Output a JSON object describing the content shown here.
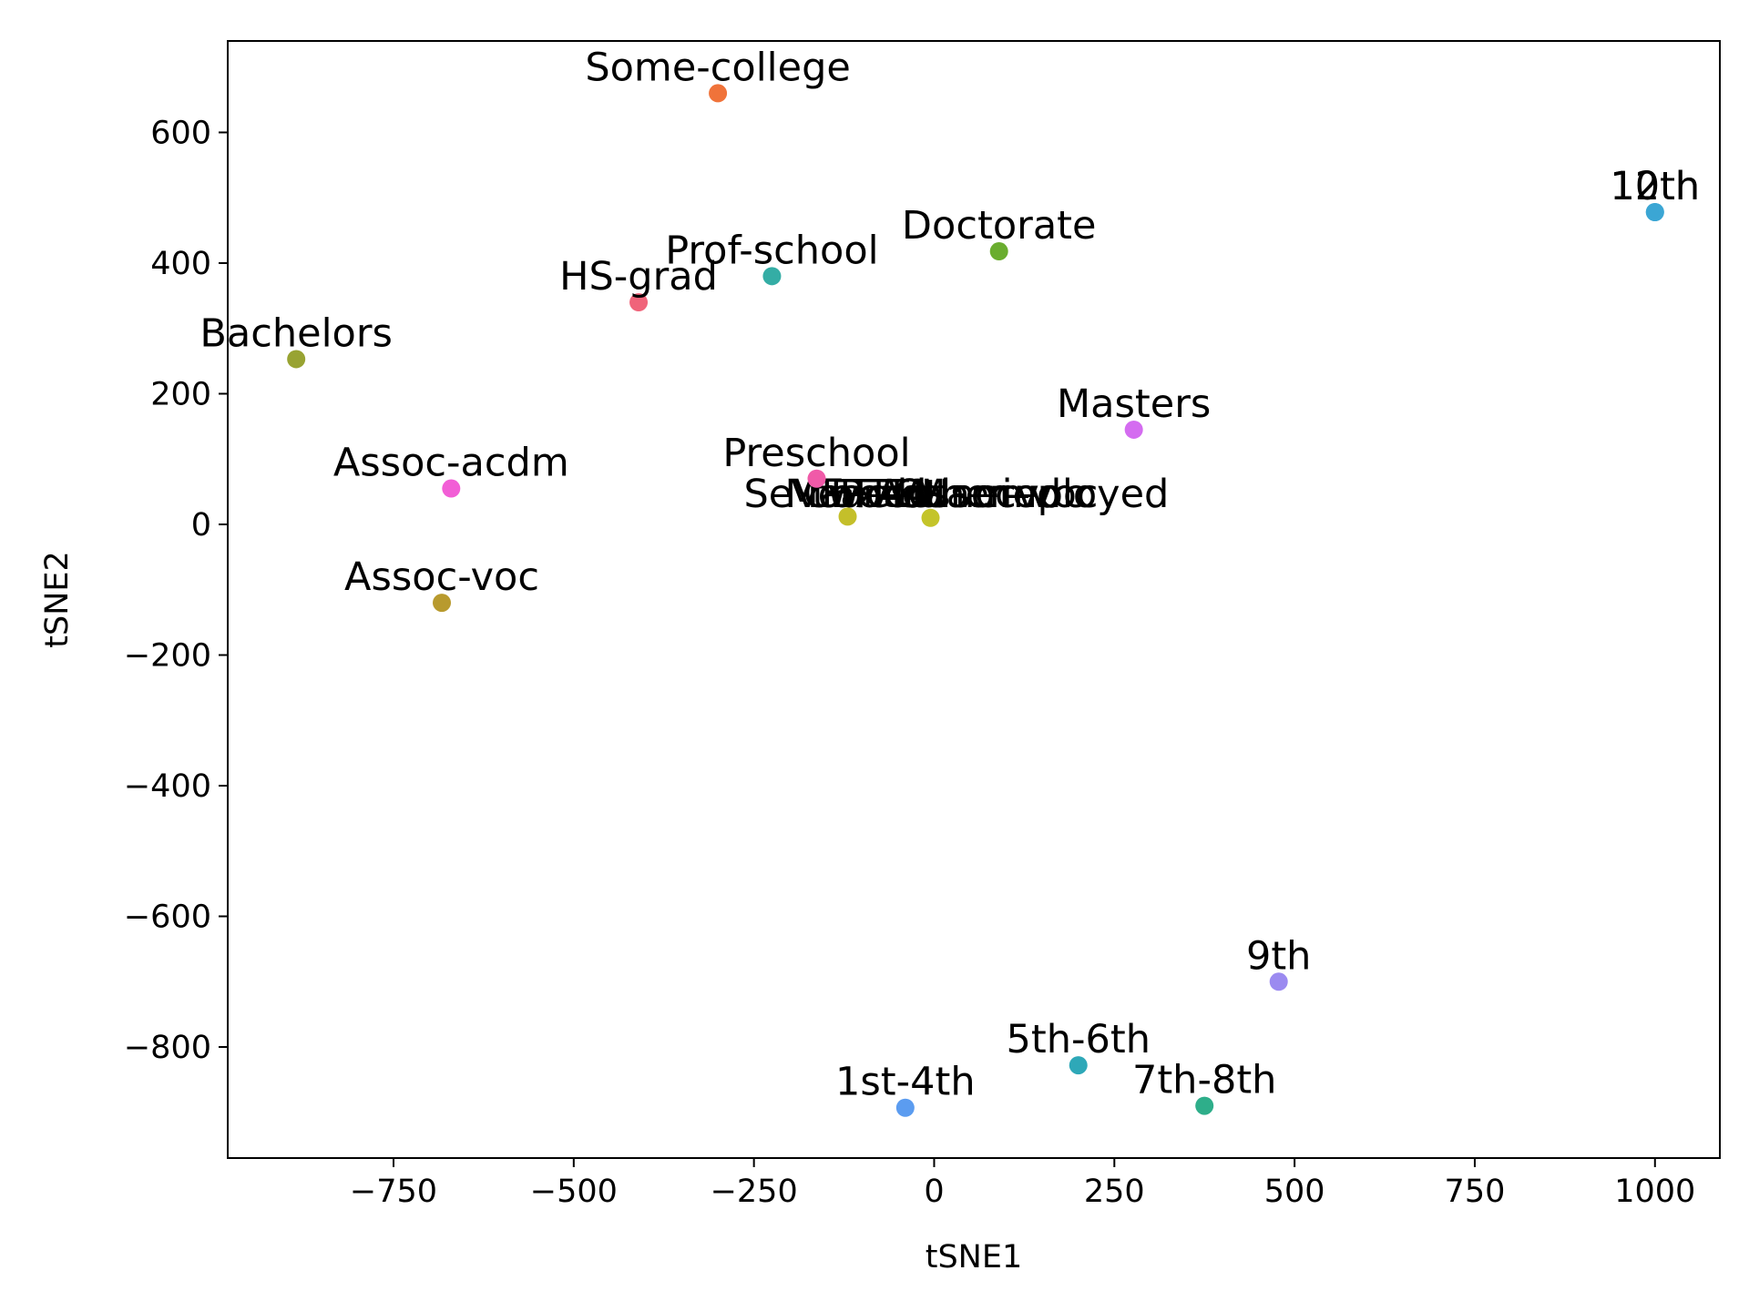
{
  "chart_data": {
    "type": "scatter",
    "title": "",
    "xlabel": "tSNE1",
    "ylabel": "tSNE2",
    "xlim": [
      -980,
      1090
    ],
    "ylim": [
      -970,
      740
    ],
    "xticks": [
      {
        "value": -750,
        "label": "−750"
      },
      {
        "value": -500,
        "label": "−500"
      },
      {
        "value": -250,
        "label": "−250"
      },
      {
        "value": 0,
        "label": "0"
      },
      {
        "value": 250,
        "label": "250"
      },
      {
        "value": 500,
        "label": "500"
      },
      {
        "value": 750,
        "label": "750"
      },
      {
        "value": 1000,
        "label": "1000"
      }
    ],
    "yticks": [
      {
        "value": -800,
        "label": "−800"
      },
      {
        "value": -600,
        "label": "−600"
      },
      {
        "value": -400,
        "label": "−400"
      },
      {
        "value": -200,
        "label": "−200"
      },
      {
        "value": 0,
        "label": "0"
      },
      {
        "value": 200,
        "label": "200"
      },
      {
        "value": 400,
        "label": "400"
      },
      {
        "value": 600,
        "label": "600"
      }
    ],
    "grid": false,
    "points": [
      {
        "label": "Some-college",
        "x": -300,
        "y": 660,
        "color": "#f0733a"
      },
      {
        "label": "Doctorate",
        "x": 90,
        "y": 418,
        "color": "#6aad2f"
      },
      {
        "label": "Prof-school",
        "x": -225,
        "y": 380,
        "color": "#34ada5"
      },
      {
        "label": "HS-grad",
        "x": -410,
        "y": 340,
        "color": "#f0647a"
      },
      {
        "label": "Bachelors",
        "x": -885,
        "y": 253,
        "color": "#98a332"
      },
      {
        "label": "Masters",
        "x": 277,
        "y": 145,
        "color": "#d46cf0"
      },
      {
        "label": "Preschool",
        "x": -163,
        "y": 70,
        "color": "#f05aa8"
      },
      {
        "label": "Assoc-acdm",
        "x": -670,
        "y": 55,
        "color": "#f25ed6"
      },
      {
        "label": "Some-college-2",
        "x": -120,
        "y": 12,
        "color": "#c4bf2a"
      },
      {
        "label": "Assoc-voc",
        "x": -683,
        "y": -120,
        "color": "#b89a2e"
      },
      {
        "label": "9th",
        "x": 478,
        "y": -700,
        "color": "#9b8af0"
      },
      {
        "label": "5th-6th",
        "x": 200,
        "y": -828,
        "color": "#2ea8b8"
      },
      {
        "label": "1st-4th",
        "x": -40,
        "y": -893,
        "color": "#5b9cf0"
      },
      {
        "label": "7th-8th",
        "x": 375,
        "y": -890,
        "color": "#2eae8a"
      },
      {
        "label": "10th",
        "x": 1000,
        "y": 478,
        "color": "#3ba6d4"
      },
      {
        "label": "12th",
        "x": 1000,
        "y": 478,
        "color": "#3ba6d4"
      }
    ],
    "overlapping_labels": [
      "Se",
      "Ma",
      "Vo",
      "Co",
      "tw",
      "Fa",
      "Ex",
      "Pr",
      "Te",
      "oth",
      "Tec",
      "Ad",
      "Tra",
      "Other-voc",
      "Assoc-voc",
      "Married",
      "Unemployed"
    ],
    "overlapping_cluster": {
      "x": -5,
      "y": 10,
      "color": "#c4c42a"
    }
  }
}
